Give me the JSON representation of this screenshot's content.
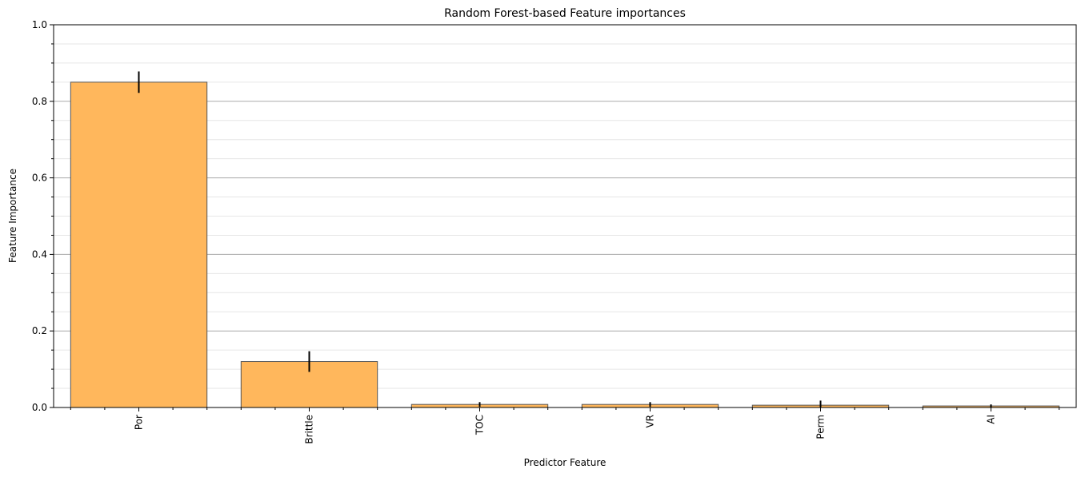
{
  "chart_data": {
    "type": "bar",
    "title": "Random Forest-based Feature importances",
    "xlabel": "Predictor Feature",
    "ylabel": "Feature Importance",
    "categories": [
      "Por",
      "Brittle",
      "TOC",
      "VR",
      "Perm",
      "AI"
    ],
    "values": [
      0.85,
      0.12,
      0.008,
      0.008,
      0.006,
      0.004
    ],
    "errors": [
      0.028,
      0.027,
      0.006,
      0.006,
      0.012,
      0.004
    ],
    "ylim": [
      0,
      1.0
    ],
    "yticks": [
      0.0,
      0.2,
      0.4,
      0.6,
      0.8,
      1.0
    ],
    "ytick_labels": [
      "0.0",
      "0.2",
      "0.4",
      "0.6",
      "0.8",
      "1.0"
    ],
    "grid": "major and minor horizontal",
    "bar_color": "#ffb75c",
    "bar_edge_color": "#555555",
    "error_color": "#000000"
  }
}
